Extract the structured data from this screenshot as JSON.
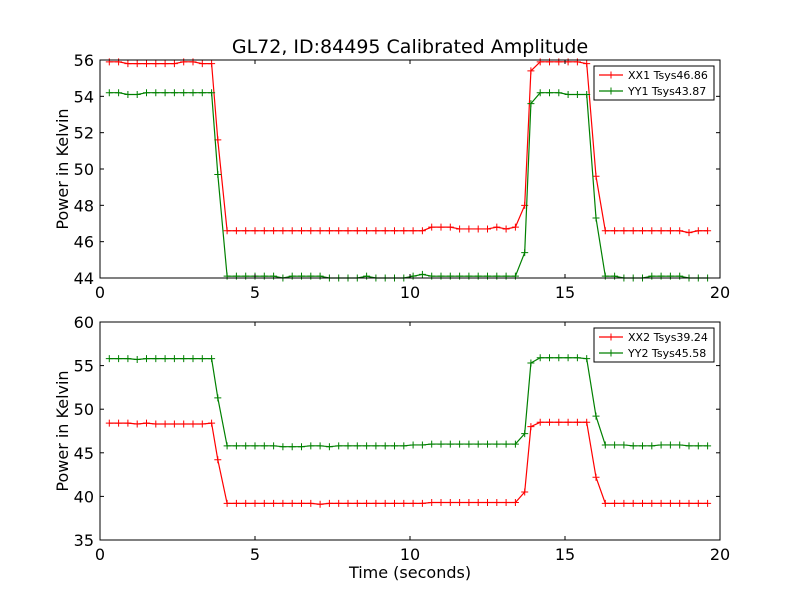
{
  "figure": {
    "title": "GL72, ID:84495 Calibrated Amplitude",
    "xlabel": "Time (seconds)"
  },
  "chart_data": [
    {
      "type": "line",
      "ylabel": "Power in Kelvin",
      "xlim": [
        0,
        20
      ],
      "ylim": [
        44,
        56
      ],
      "xticks": [
        0,
        5,
        10,
        15,
        20
      ],
      "yticks": [
        44,
        46,
        48,
        50,
        52,
        54,
        56
      ],
      "grid": false,
      "legend_position": "top-right",
      "series": [
        {
          "name": "XX1 Tsys46.86",
          "color": "#ff0000",
          "x": [
            0.3,
            0.6,
            0.9,
            1.2,
            1.5,
            1.8,
            2.1,
            2.4,
            2.7,
            3.0,
            3.3,
            3.6,
            3.8,
            4.1,
            4.4,
            4.7,
            5.0,
            5.3,
            5.6,
            5.9,
            6.2,
            6.5,
            6.8,
            7.1,
            7.4,
            7.7,
            8.0,
            8.3,
            8.6,
            8.9,
            9.2,
            9.5,
            9.8,
            10.1,
            10.4,
            10.7,
            11.0,
            11.3,
            11.6,
            11.9,
            12.2,
            12.5,
            12.8,
            13.1,
            13.4,
            13.7,
            13.9,
            14.2,
            14.5,
            14.8,
            15.1,
            15.4,
            15.7,
            16.0,
            16.3,
            16.6,
            16.9,
            17.2,
            17.5,
            17.8,
            18.1,
            18.4,
            18.7,
            19.0,
            19.3,
            19.6
          ],
          "values": [
            55.9,
            55.9,
            55.8,
            55.8,
            55.8,
            55.8,
            55.8,
            55.8,
            55.9,
            55.9,
            55.8,
            55.8,
            51.6,
            46.6,
            46.6,
            46.6,
            46.6,
            46.6,
            46.6,
            46.6,
            46.6,
            46.6,
            46.6,
            46.6,
            46.6,
            46.6,
            46.6,
            46.6,
            46.6,
            46.6,
            46.6,
            46.6,
            46.6,
            46.6,
            46.6,
            46.8,
            46.8,
            46.8,
            46.7,
            46.7,
            46.7,
            46.7,
            46.8,
            46.7,
            46.8,
            48.0,
            55.4,
            55.9,
            55.9,
            55.9,
            55.9,
            55.9,
            55.8,
            49.6,
            46.6,
            46.6,
            46.6,
            46.6,
            46.6,
            46.6,
            46.6,
            46.6,
            46.6,
            46.5,
            46.6,
            46.6
          ]
        },
        {
          "name": "YY1 Tsys43.87",
          "color": "#008000",
          "x": [
            0.3,
            0.6,
            0.9,
            1.2,
            1.5,
            1.8,
            2.1,
            2.4,
            2.7,
            3.0,
            3.3,
            3.6,
            3.8,
            4.1,
            4.4,
            4.7,
            5.0,
            5.3,
            5.6,
            5.9,
            6.2,
            6.5,
            6.8,
            7.1,
            7.4,
            7.7,
            8.0,
            8.3,
            8.6,
            8.9,
            9.2,
            9.5,
            9.8,
            10.1,
            10.4,
            10.7,
            11.0,
            11.3,
            11.6,
            11.9,
            12.2,
            12.5,
            12.8,
            13.1,
            13.4,
            13.7,
            13.9,
            14.2,
            14.5,
            14.8,
            15.1,
            15.4,
            15.7,
            16.0,
            16.3,
            16.6,
            16.9,
            17.2,
            17.5,
            17.8,
            18.1,
            18.4,
            18.7,
            19.0,
            19.3,
            19.6
          ],
          "values": [
            54.2,
            54.2,
            54.1,
            54.1,
            54.2,
            54.2,
            54.2,
            54.2,
            54.2,
            54.2,
            54.2,
            54.2,
            49.7,
            44.1,
            44.1,
            44.1,
            44.1,
            44.1,
            44.1,
            44.0,
            44.1,
            44.1,
            44.1,
            44.1,
            44.0,
            44.0,
            44.0,
            44.0,
            44.1,
            44.0,
            44.0,
            44.0,
            44.0,
            44.1,
            44.2,
            44.1,
            44.1,
            44.1,
            44.1,
            44.1,
            44.1,
            44.1,
            44.1,
            44.1,
            44.1,
            45.4,
            53.6,
            54.2,
            54.2,
            54.2,
            54.1,
            54.1,
            54.1,
            47.3,
            44.1,
            44.1,
            44.0,
            44.0,
            44.0,
            44.1,
            44.1,
            44.1,
            44.1,
            44.0,
            44.0,
            44.0
          ]
        }
      ]
    },
    {
      "type": "line",
      "ylabel": "Power in Kelvin",
      "xlim": [
        0,
        20
      ],
      "ylim": [
        35,
        60
      ],
      "xticks": [
        0,
        5,
        10,
        15,
        20
      ],
      "yticks": [
        35,
        40,
        45,
        50,
        55,
        60
      ],
      "grid": false,
      "legend_position": "top-right",
      "series": [
        {
          "name": "XX2 Tsys39.24",
          "color": "#ff0000",
          "x": [
            0.3,
            0.6,
            0.9,
            1.2,
            1.5,
            1.8,
            2.1,
            2.4,
            2.7,
            3.0,
            3.3,
            3.6,
            3.8,
            4.1,
            4.4,
            4.7,
            5.0,
            5.3,
            5.6,
            5.9,
            6.2,
            6.5,
            6.8,
            7.1,
            7.4,
            7.7,
            8.0,
            8.3,
            8.6,
            8.9,
            9.2,
            9.5,
            9.8,
            10.1,
            10.4,
            10.7,
            11.0,
            11.3,
            11.6,
            11.9,
            12.2,
            12.5,
            12.8,
            13.1,
            13.4,
            13.7,
            13.9,
            14.2,
            14.5,
            14.8,
            15.1,
            15.4,
            15.7,
            16.0,
            16.3,
            16.6,
            16.9,
            17.2,
            17.5,
            17.8,
            18.1,
            18.4,
            18.7,
            19.0,
            19.3,
            19.6
          ],
          "values": [
            48.4,
            48.4,
            48.4,
            48.3,
            48.4,
            48.3,
            48.3,
            48.3,
            48.3,
            48.3,
            48.3,
            48.4,
            44.2,
            39.2,
            39.2,
            39.2,
            39.2,
            39.2,
            39.2,
            39.2,
            39.2,
            39.2,
            39.2,
            39.1,
            39.2,
            39.2,
            39.2,
            39.2,
            39.2,
            39.2,
            39.2,
            39.2,
            39.2,
            39.2,
            39.2,
            39.3,
            39.3,
            39.3,
            39.3,
            39.3,
            39.3,
            39.3,
            39.3,
            39.3,
            39.3,
            40.5,
            48.0,
            48.5,
            48.5,
            48.5,
            48.5,
            48.5,
            48.5,
            42.2,
            39.2,
            39.2,
            39.2,
            39.2,
            39.2,
            39.2,
            39.2,
            39.2,
            39.2,
            39.2,
            39.2,
            39.2
          ]
        },
        {
          "name": "YY2 Tsys45.58",
          "color": "#008000",
          "x": [
            0.3,
            0.6,
            0.9,
            1.2,
            1.5,
            1.8,
            2.1,
            2.4,
            2.7,
            3.0,
            3.3,
            3.6,
            3.8,
            4.1,
            4.4,
            4.7,
            5.0,
            5.3,
            5.6,
            5.9,
            6.2,
            6.5,
            6.8,
            7.1,
            7.4,
            7.7,
            8.0,
            8.3,
            8.6,
            8.9,
            9.2,
            9.5,
            9.8,
            10.1,
            10.4,
            10.7,
            11.0,
            11.3,
            11.6,
            11.9,
            12.2,
            12.5,
            12.8,
            13.1,
            13.4,
            13.7,
            13.9,
            14.2,
            14.5,
            14.8,
            15.1,
            15.4,
            15.7,
            16.0,
            16.3,
            16.6,
            16.9,
            17.2,
            17.5,
            17.8,
            18.1,
            18.4,
            18.7,
            19.0,
            19.3,
            19.6
          ],
          "values": [
            55.8,
            55.8,
            55.8,
            55.7,
            55.8,
            55.8,
            55.8,
            55.8,
            55.8,
            55.8,
            55.8,
            55.8,
            51.3,
            45.8,
            45.8,
            45.8,
            45.8,
            45.8,
            45.8,
            45.7,
            45.7,
            45.7,
            45.8,
            45.8,
            45.7,
            45.8,
            45.8,
            45.8,
            45.8,
            45.8,
            45.8,
            45.8,
            45.8,
            45.9,
            45.9,
            46.0,
            46.0,
            46.0,
            46.0,
            46.0,
            46.0,
            46.0,
            46.0,
            46.0,
            46.0,
            47.2,
            55.3,
            55.9,
            55.9,
            55.9,
            55.9,
            55.9,
            55.8,
            49.2,
            45.9,
            45.9,
            45.9,
            45.8,
            45.8,
            45.8,
            45.9,
            45.9,
            45.9,
            45.8,
            45.8,
            45.8
          ]
        }
      ]
    }
  ]
}
